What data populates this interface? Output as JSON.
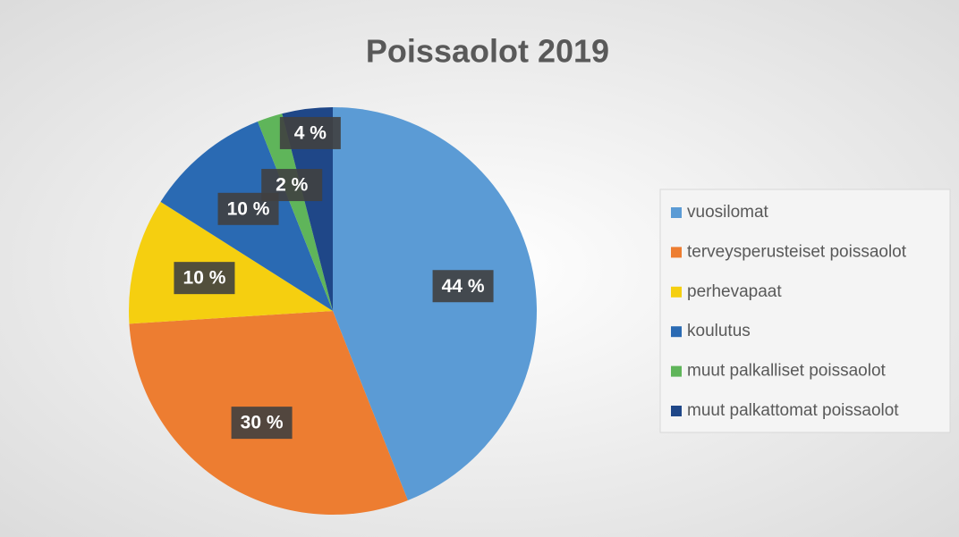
{
  "chart_data": {
    "type": "pie",
    "title": "Poissaolot 2019",
    "categories": [
      "vuosilomat",
      "terveysperusteiset poissaolot",
      "perhevapaat",
      "koulutus",
      "muut palkalliset poissaolot",
      "muut palkattomat poissaolot"
    ],
    "values": [
      44,
      30,
      10,
      10,
      2,
      4
    ],
    "value_labels": [
      "44 %",
      "30 %",
      "10 %",
      "10 %",
      "2 %",
      "4 %"
    ],
    "colors": [
      "#5b9bd5",
      "#ed7d31",
      "#f5cf10",
      "#2a6ab3",
      "#5fb55a",
      "#1f4788"
    ],
    "legend": "right"
  }
}
